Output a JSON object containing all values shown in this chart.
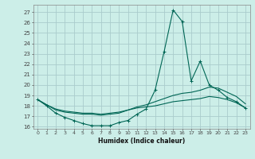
{
  "title": "",
  "xlabel": "Humidex (Indice chaleur)",
  "xlim": [
    -0.5,
    23.5
  ],
  "ylim": [
    15.8,
    27.7
  ],
  "yticks": [
    16,
    17,
    18,
    19,
    20,
    21,
    22,
    23,
    24,
    25,
    26,
    27
  ],
  "xticks": [
    0,
    1,
    2,
    3,
    4,
    5,
    6,
    7,
    8,
    9,
    10,
    11,
    12,
    13,
    14,
    15,
    16,
    17,
    18,
    19,
    20,
    21,
    22,
    23
  ],
  "bg_color": "#cceee8",
  "grid_color": "#aacccc",
  "line_color": "#006655",
  "lines": [
    {
      "x": [
        0,
        1,
        2,
        3,
        4,
        5,
        6,
        7,
        8,
        9,
        10,
        11,
        12,
        13,
        14,
        15,
        16,
        17,
        18,
        19,
        20,
        21,
        22,
        23
      ],
      "y": [
        18.6,
        18.0,
        17.3,
        16.9,
        16.6,
        16.3,
        16.1,
        16.1,
        16.1,
        16.4,
        16.6,
        17.2,
        17.7,
        19.5,
        23.2,
        27.2,
        26.1,
        20.4,
        22.3,
        20.0,
        19.5,
        18.8,
        18.4,
        17.8
      ],
      "marker": true
    },
    {
      "x": [
        0,
        1,
        2,
        3,
        4,
        5,
        6,
        7,
        8,
        9,
        10,
        11,
        12,
        13,
        14,
        15,
        16,
        17,
        18,
        19,
        20,
        21,
        22,
        23
      ],
      "y": [
        18.6,
        18.1,
        17.6,
        17.4,
        17.3,
        17.2,
        17.2,
        17.1,
        17.2,
        17.3,
        17.6,
        17.9,
        18.1,
        18.4,
        18.7,
        19.0,
        19.2,
        19.3,
        19.5,
        19.8,
        19.7,
        19.3,
        18.9,
        18.2
      ],
      "marker": false
    },
    {
      "x": [
        0,
        1,
        2,
        3,
        4,
        5,
        6,
        7,
        8,
        9,
        10,
        11,
        12,
        13,
        14,
        15,
        16,
        17,
        18,
        19,
        20,
        21,
        22,
        23
      ],
      "y": [
        18.6,
        18.1,
        17.7,
        17.5,
        17.4,
        17.3,
        17.3,
        17.2,
        17.3,
        17.4,
        17.6,
        17.8,
        17.9,
        18.0,
        18.2,
        18.4,
        18.5,
        18.6,
        18.7,
        18.9,
        18.8,
        18.6,
        18.3,
        17.8
      ],
      "marker": false
    }
  ]
}
